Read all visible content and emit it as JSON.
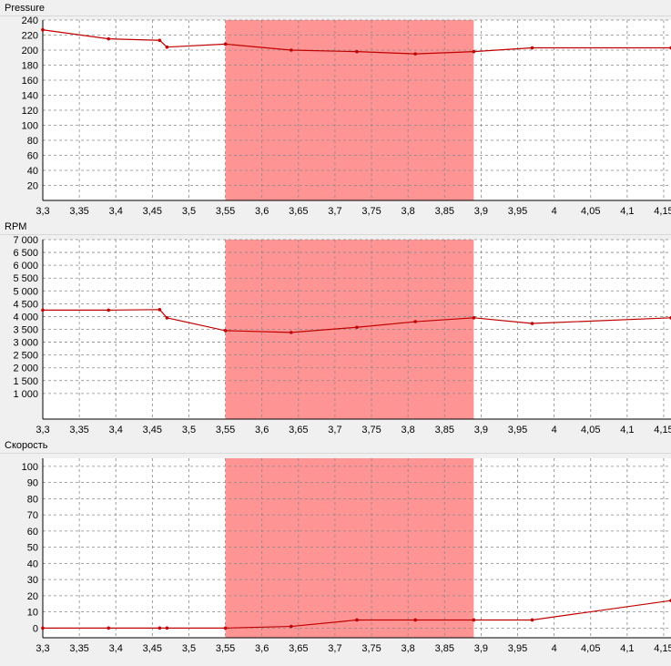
{
  "colors": {
    "background": "#f0f0f0",
    "plot_bg": "#ffffff",
    "highlight": "#ff9494",
    "line": "#c00000",
    "grid": "#888888"
  },
  "highlight_range": [
    3.55,
    3.89
  ],
  "chart_data": [
    {
      "type": "line",
      "title": "Pressure",
      "x": [
        3.3,
        3.39,
        3.46,
        3.47,
        3.55,
        3.64,
        3.73,
        3.81,
        3.89,
        3.97,
        4.16
      ],
      "series": [
        {
          "name": "Pressure",
          "values": [
            227,
            215,
            213,
            204,
            208,
            200,
            198,
            195,
            198,
            203,
            203
          ]
        }
      ],
      "xlim": [
        3.3,
        4.16
      ],
      "ylim": [
        0,
        240
      ],
      "x_ticks": [
        3.3,
        3.35,
        3.4,
        3.45,
        3.5,
        3.55,
        3.6,
        3.65,
        3.7,
        3.75,
        3.8,
        3.85,
        3.9,
        3.95,
        4,
        4.05,
        4.1,
        4.15
      ],
      "x_tick_labels": [
        "3,3",
        "3,35",
        "3,4",
        "3,45",
        "3,5",
        "3,55",
        "3,6",
        "3,65",
        "3,7",
        "3,75",
        "3,8",
        "3,85",
        "3,9",
        "3,95",
        "4",
        "4,05",
        "4,1",
        "4,15"
      ],
      "y_ticks": [
        20,
        40,
        60,
        80,
        100,
        120,
        140,
        160,
        180,
        200,
        220,
        240
      ],
      "y_tick_labels": [
        "20",
        "40",
        "60",
        "80",
        "100",
        "120",
        "140",
        "160",
        "180",
        "200",
        "220",
        "240"
      ]
    },
    {
      "type": "line",
      "title": "RPM",
      "x": [
        3.3,
        3.39,
        3.46,
        3.47,
        3.55,
        3.64,
        3.73,
        3.81,
        3.89,
        3.97,
        4.16
      ],
      "series": [
        {
          "name": "RPM",
          "values": [
            4250,
            4250,
            4270,
            3950,
            3450,
            3380,
            3580,
            3800,
            3950,
            3730,
            3950
          ]
        }
      ],
      "xlim": [
        3.3,
        4.16
      ],
      "ylim": [
        0,
        7000
      ],
      "x_ticks": [
        3.3,
        3.35,
        3.4,
        3.45,
        3.5,
        3.55,
        3.6,
        3.65,
        3.7,
        3.75,
        3.8,
        3.85,
        3.9,
        3.95,
        4,
        4.05,
        4.1,
        4.15
      ],
      "x_tick_labels": [
        "3,3",
        "3,35",
        "3,4",
        "3,45",
        "3,5",
        "3,55",
        "3,6",
        "3,65",
        "3,7",
        "3,75",
        "3,8",
        "3,85",
        "3,9",
        "3,95",
        "4",
        "4,05",
        "4,1",
        "4,15"
      ],
      "y_ticks": [
        1000,
        1500,
        2000,
        2500,
        3000,
        3500,
        4000,
        4500,
        5000,
        5500,
        6000,
        6500,
        7000
      ],
      "y_tick_labels": [
        "1 000",
        "1 500",
        "2 000",
        "2 500",
        "3 000",
        "3 500",
        "4 000",
        "4 500",
        "5 000",
        "5 500",
        "6 000",
        "6 500",
        "7 000"
      ]
    },
    {
      "type": "line",
      "title": "Скорость",
      "x": [
        3.3,
        3.39,
        3.46,
        3.47,
        3.55,
        3.64,
        3.73,
        3.81,
        3.89,
        3.97,
        4.16
      ],
      "series": [
        {
          "name": "Скорость",
          "values": [
            0,
            0,
            0,
            0,
            0,
            1,
            5,
            5,
            5,
            5,
            17
          ]
        }
      ],
      "xlim": [
        3.3,
        4.16
      ],
      "ylim": [
        -6,
        105
      ],
      "x_ticks": [
        3.3,
        3.35,
        3.4,
        3.45,
        3.5,
        3.55,
        3.6,
        3.65,
        3.7,
        3.75,
        3.8,
        3.85,
        3.9,
        3.95,
        4,
        4.05,
        4.1,
        4.15
      ],
      "x_tick_labels": [
        "3,3",
        "3,35",
        "3,4",
        "3,45",
        "3,5",
        "3,55",
        "3,6",
        "3,65",
        "3,7",
        "3,75",
        "3,8",
        "3,85",
        "3,9",
        "3,95",
        "4",
        "4,05",
        "4,1",
        "4,15"
      ],
      "y_ticks": [
        0,
        10,
        20,
        30,
        40,
        50,
        60,
        70,
        80,
        90,
        100
      ],
      "y_tick_labels": [
        "0",
        "10",
        "20",
        "30",
        "40",
        "50",
        "60",
        "70",
        "80",
        "90",
        "100"
      ]
    }
  ]
}
